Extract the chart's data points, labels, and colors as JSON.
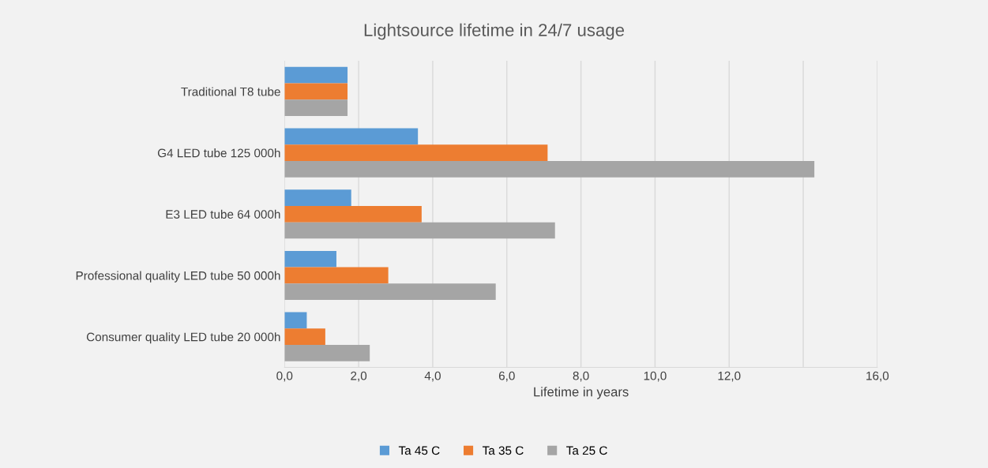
{
  "chart_data": {
    "type": "bar",
    "orientation": "horizontal",
    "title": "Lightsource lifetime in 24/7 usage",
    "xlabel": "Lifetime in years",
    "categories": [
      "Traditional T8 tube",
      "G4 LED tube 125 000h",
      "E3 LED tube 64 000h",
      "Professional quality LED tube 50 000h",
      "Consumer quality LED tube 20 000h"
    ],
    "series": [
      {
        "name": "Ta 45 C",
        "color": "#5b9bd5",
        "values": [
          1.7,
          3.6,
          1.8,
          1.4,
          0.6
        ]
      },
      {
        "name": "Ta 35 C",
        "color": "#ed7d31",
        "values": [
          1.7,
          7.1,
          3.7,
          2.8,
          1.1
        ]
      },
      {
        "name": "Ta 25 C",
        "color": "#a5a5a5",
        "values": [
          1.7,
          14.3,
          7.3,
          5.7,
          2.3
        ]
      }
    ],
    "xlim": [
      0,
      16
    ],
    "xticks": [
      {
        "value": 0,
        "label": "0,0"
      },
      {
        "value": 2,
        "label": "2,0"
      },
      {
        "value": 4,
        "label": "4,0"
      },
      {
        "value": 6,
        "label": "6,0"
      },
      {
        "value": 8,
        "label": "8,0"
      },
      {
        "value": 10,
        "label": "10,0"
      },
      {
        "value": 12,
        "label": "12,0"
      },
      {
        "value": 14,
        "label": null
      },
      {
        "value": 16,
        "label": "16,0"
      }
    ],
    "grid": "x",
    "legend": "bottom"
  }
}
